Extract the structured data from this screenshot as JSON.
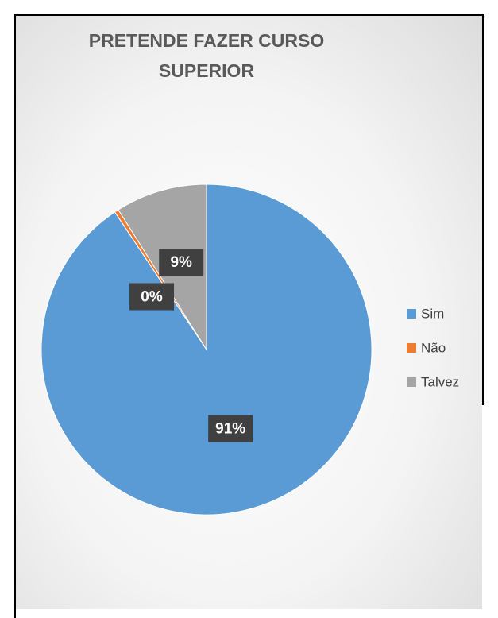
{
  "chart_data": {
    "type": "pie",
    "title": "PRETENDE FAZER CURSO SUPERIOR",
    "categories": [
      "Sim",
      "Não",
      "Talvez"
    ],
    "values": [
      91,
      0.4,
      9
    ],
    "value_labels": [
      "91%",
      "0%",
      "9%"
    ],
    "colors": [
      "#5b9bd5",
      "#ed7d31",
      "#a5a5a5"
    ],
    "legend": "right"
  }
}
